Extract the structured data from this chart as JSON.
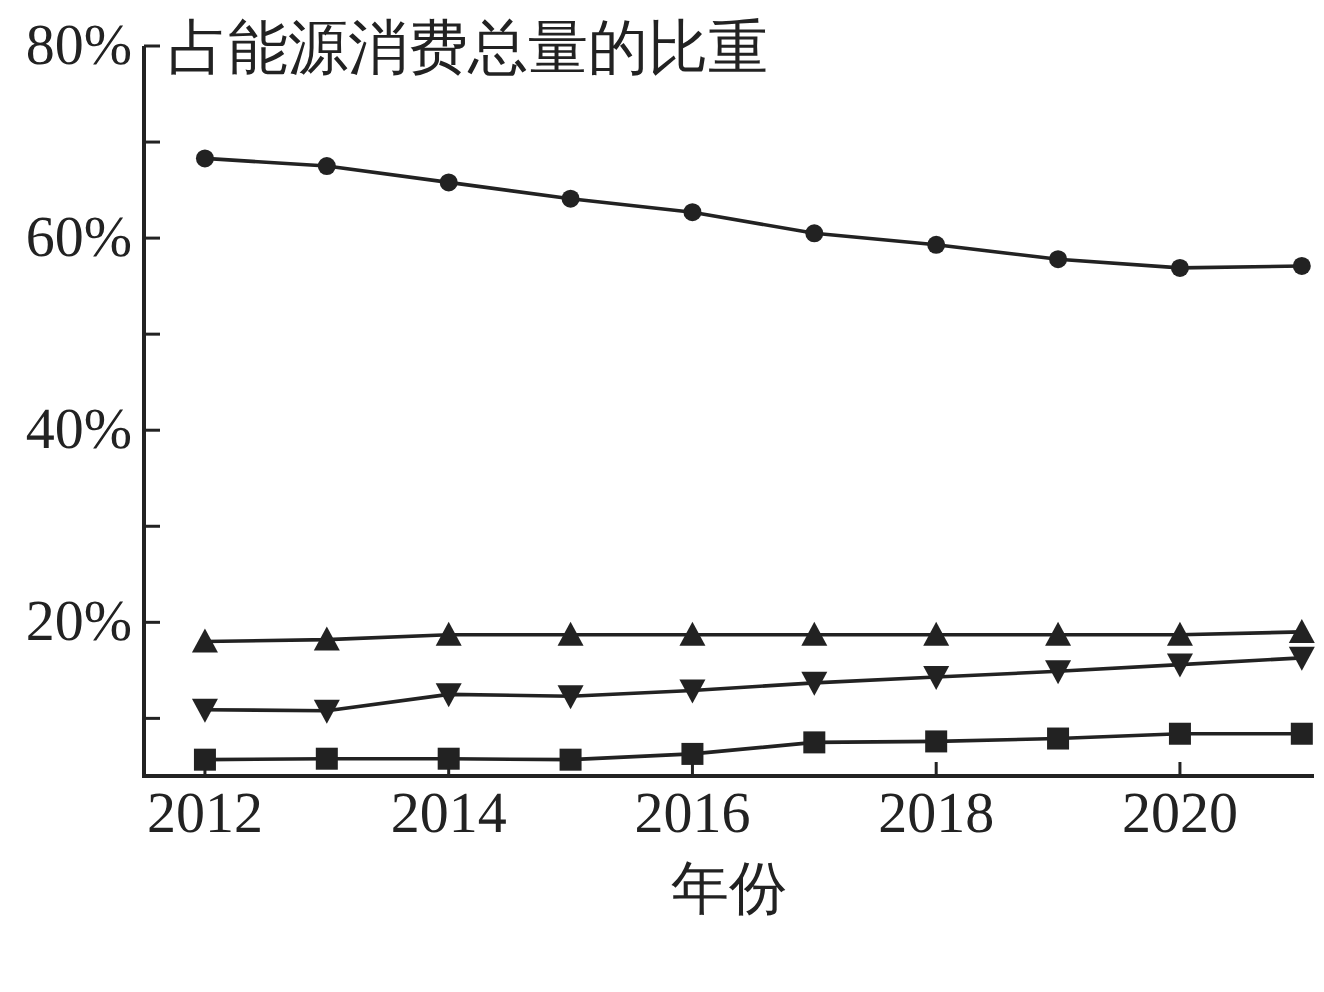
{
  "chart_data": {
    "type": "line",
    "title": "占能源消费总量的比重",
    "xlabel": "年份",
    "x": [
      2012,
      2013,
      2014,
      2015,
      2016,
      2017,
      2018,
      2019,
      2020,
      2021
    ],
    "series": [
      {
        "color": "#222222",
        "marker": "circle",
        "values": [
          68.3,
          67.5,
          65.8,
          64.1,
          62.7,
          60.5,
          59.3,
          57.8,
          56.9,
          57.1
        ]
      },
      {
        "color": "#222222",
        "marker": "triangle",
        "values": [
          18.0,
          18.2,
          18.7,
          18.7,
          18.7,
          18.7,
          18.7,
          18.7,
          18.7,
          19.0
        ]
      },
      {
        "color": "#222222",
        "marker": "triangle-down",
        "values": [
          10.9,
          10.8,
          12.5,
          12.3,
          12.9,
          13.7,
          14.3,
          14.9,
          15.6,
          16.3
        ]
      },
      {
        "color": "#222222",
        "marker": "square",
        "values": [
          5.7,
          5.8,
          5.8,
          5.7,
          6.3,
          7.5,
          7.6,
          7.9,
          8.4,
          8.4
        ]
      }
    ],
    "xlim": [
      2011.5,
      2021.1
    ],
    "ylim": [
      4,
      80
    ],
    "xticks": [
      2012,
      2014,
      2016,
      2018,
      2020
    ],
    "yticks": [
      {
        "value": 80,
        "label": "80%"
      },
      {
        "value": 70,
        "label": null
      },
      {
        "value": 60,
        "label": "60%"
      },
      {
        "value": 50,
        "label": null
      },
      {
        "value": 40,
        "label": "40%"
      },
      {
        "value": 30,
        "label": null
      },
      {
        "value": 20,
        "label": "20%"
      },
      {
        "value": 10,
        "label": null
      }
    ]
  }
}
